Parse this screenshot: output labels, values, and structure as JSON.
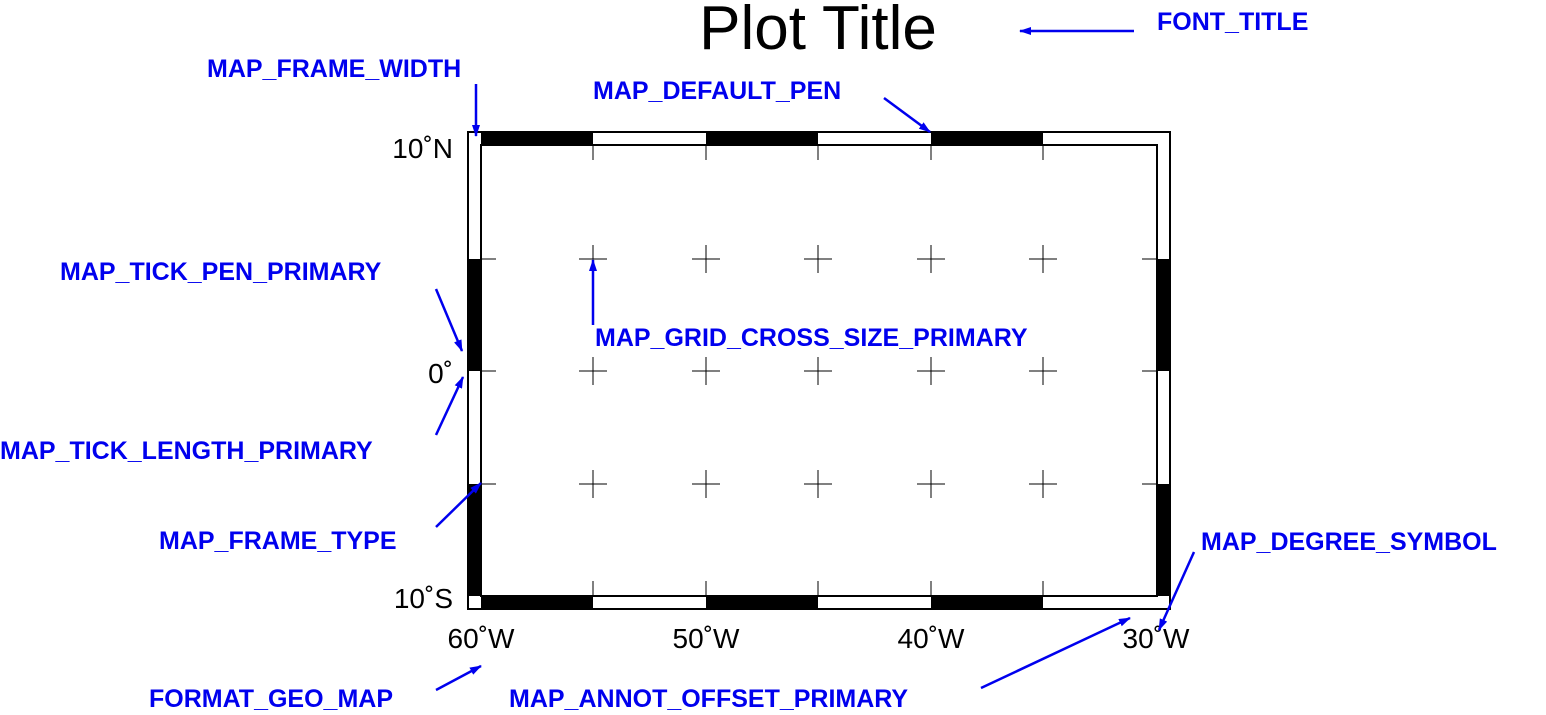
{
  "title": "Plot Title",
  "labels": {
    "font_title": "FONT_TITLE",
    "map_frame_width": "MAP_FRAME_WIDTH",
    "map_default_pen": "MAP_DEFAULT_PEN",
    "map_tick_pen_primary": "MAP_TICK_PEN_PRIMARY",
    "map_grid_cross_size_primary": "MAP_GRID_CROSS_SIZE_PRIMARY",
    "map_tick_length_primary": "MAP_TICK_LENGTH_PRIMARY",
    "map_frame_type": "MAP_FRAME_TYPE",
    "map_degree_symbol": "MAP_DEGREE_SYMBOL",
    "format_geo_map": "FORMAT_GEO_MAP",
    "map_annot_offset_primary": "MAP_ANNOT_OFFSET_PRIMARY"
  },
  "annotations": {
    "lat_north": "10˚N",
    "lat_equator": "0˚",
    "lat_south": "10˚S",
    "lon_60w": "60˚W",
    "lon_50w": "50˚W",
    "lon_40w": "40˚W",
    "lon_30w": "30˚W"
  },
  "colors": {
    "label": "#0000ee",
    "frame": "#000000",
    "background": "#ffffff"
  }
}
